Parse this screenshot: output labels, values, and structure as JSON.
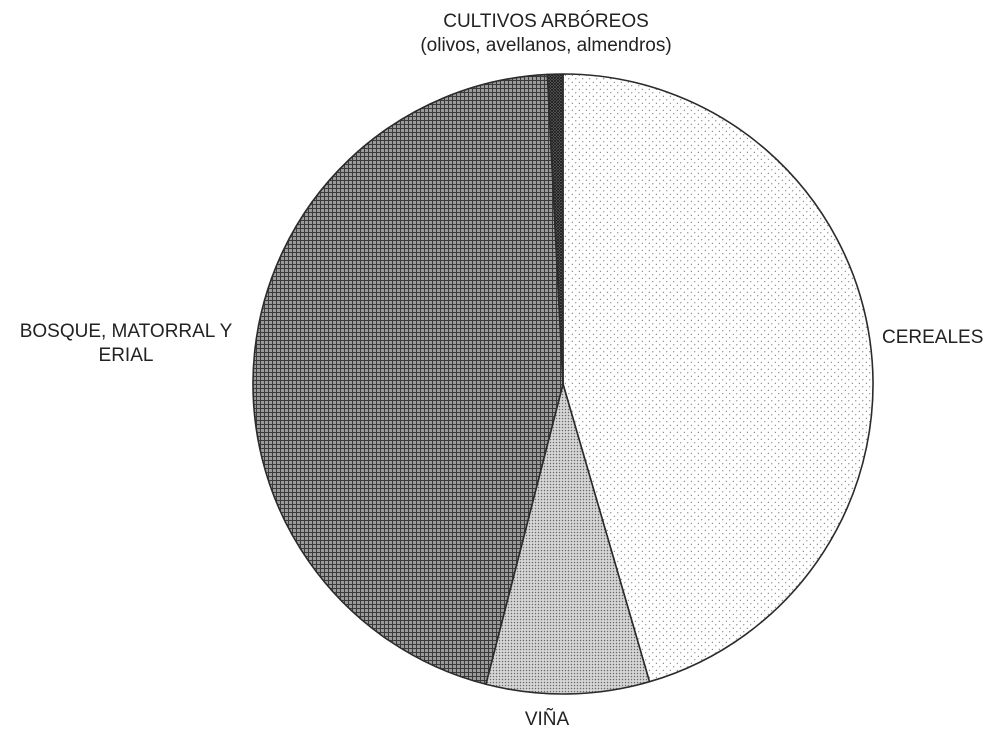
{
  "chart_data": {
    "type": "pie",
    "title": "",
    "start_angle_deg": 0,
    "direction": "clockwise",
    "slices": [
      {
        "key": "cereales",
        "label": "CEREALES",
        "value": 45.5,
        "pattern": "fine-dots",
        "color": "#bdbdbd"
      },
      {
        "key": "vina",
        "label": "VIÑA",
        "value": 8.5,
        "pattern": "dense-dots",
        "color": "#c8c8c8"
      },
      {
        "key": "bosque",
        "label": "BOSQUE, MATORRAL Y ERIAL",
        "value": 45.2,
        "pattern": "grid",
        "color": "#5a5a5a"
      },
      {
        "key": "arboreos",
        "label": "CULTIVOS ARBÓREOS",
        "sublabel": "(olivos, avellanos, almendros)",
        "value": 0.8,
        "pattern": "crosshatch-dark",
        "color": "#333333"
      }
    ],
    "outline_color": "#2b2b2b"
  }
}
